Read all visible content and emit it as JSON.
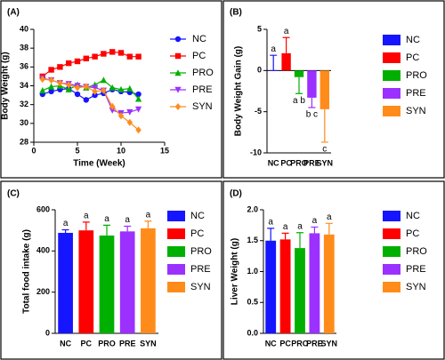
{
  "chart_data": [
    {
      "type": "line",
      "title": "(A)",
      "xlabel": "Time (Week)",
      "ylabel": "Body Weight (g)",
      "x": [
        1,
        2,
        3,
        4,
        5,
        6,
        7,
        8,
        9,
        10,
        11,
        12
      ],
      "xlim": [
        0,
        15
      ],
      "xticks": [
        0,
        5,
        10,
        15
      ],
      "ylim": [
        28,
        40
      ],
      "yticks": [
        28,
        30,
        32,
        34,
        36,
        38,
        40
      ],
      "series": [
        {
          "name": "NC",
          "color": "#1515ff",
          "marker": "circle",
          "values": [
            33.1,
            33.4,
            33.6,
            33.7,
            33.1,
            32.5,
            33.0,
            33.2,
            33.6,
            33.4,
            33.3,
            33.1
          ]
        },
        {
          "name": "PC",
          "color": "#ff0000",
          "marker": "square",
          "values": [
            35.0,
            35.7,
            36.0,
            36.4,
            36.6,
            36.9,
            37.1,
            37.4,
            37.6,
            37.5,
            37.1,
            37.1
          ]
        },
        {
          "name": "PRO",
          "color": "#00b000",
          "marker": "triangle",
          "values": [
            33.5,
            33.9,
            34.0,
            33.6,
            34.1,
            33.8,
            34.1,
            34.6,
            33.8,
            33.6,
            33.7,
            32.6
          ]
        },
        {
          "name": "PRE",
          "color": "#9b30ff",
          "marker": "triangle-down",
          "values": [
            34.8,
            34.6,
            34.3,
            34.2,
            34.0,
            33.9,
            33.8,
            33.5,
            31.4,
            31.1,
            31.2,
            31.5
          ]
        },
        {
          "name": "SYN",
          "color": "#ff8c1a",
          "marker": "diamond",
          "values": [
            34.7,
            34.6,
            34.3,
            34.1,
            33.8,
            33.9,
            33.4,
            33.5,
            31.8,
            30.8,
            30.1,
            29.3
          ]
        }
      ]
    },
    {
      "type": "bar",
      "title": "(B)",
      "ylabel": "Body Weight Gain (g)",
      "categories": [
        "NC",
        "PC",
        "PRO",
        "PRE",
        "SYN"
      ],
      "colors": [
        "#1515ff",
        "#ff0000",
        "#00b000",
        "#9b30ff",
        "#ff8c1a"
      ],
      "values": [
        0.05,
        2.1,
        -0.8,
        -3.3,
        -4.7
      ],
      "errors": [
        1.8,
        1.9,
        2.0,
        1.2,
        4.0
      ],
      "annotations": [
        "a",
        "a",
        "a b",
        "b c",
        "c"
      ],
      "ylim": [
        -10,
        5
      ],
      "yticks": [
        -10,
        -5,
        0,
        5
      ]
    },
    {
      "type": "bar",
      "title": "(C)",
      "ylabel": "Total food intake (g)",
      "categories": [
        "NC",
        "PC",
        "PRO",
        "PRE",
        "SYN"
      ],
      "colors": [
        "#1515ff",
        "#ff0000",
        "#00b000",
        "#9b30ff",
        "#ff8c1a"
      ],
      "values": [
        488,
        500,
        475,
        495,
        510
      ],
      "errors": [
        15,
        40,
        50,
        25,
        35
      ],
      "annotations": [
        "a",
        "a",
        "a",
        "a",
        "a"
      ],
      "ylim": [
        0,
        600
      ],
      "yticks": [
        0,
        200,
        400,
        600
      ]
    },
    {
      "type": "bar",
      "title": "(D)",
      "ylabel": "Liver Weight (g)",
      "categories": [
        "NC",
        "PC",
        "PRO",
        "PRE",
        "SYN"
      ],
      "colors": [
        "#1515ff",
        "#ff0000",
        "#00b000",
        "#9b30ff",
        "#ff8c1a"
      ],
      "values": [
        1.5,
        1.52,
        1.38,
        1.62,
        1.6
      ],
      "errors": [
        0.2,
        0.1,
        0.25,
        0.1,
        0.18
      ],
      "annotations": [
        "a",
        "a",
        "a",
        "a",
        "a"
      ],
      "ylim": [
        0,
        2.0
      ],
      "yticks": [
        {
          "value": 0,
          "label": "0.0"
        },
        {
          "value": 0.5,
          "label": "0.5"
        },
        {
          "value": 1.0,
          "label": "1.0"
        },
        {
          "value": 1.5,
          "label": "1.5"
        },
        {
          "value": 2.0,
          "label": "2.0"
        }
      ]
    }
  ]
}
